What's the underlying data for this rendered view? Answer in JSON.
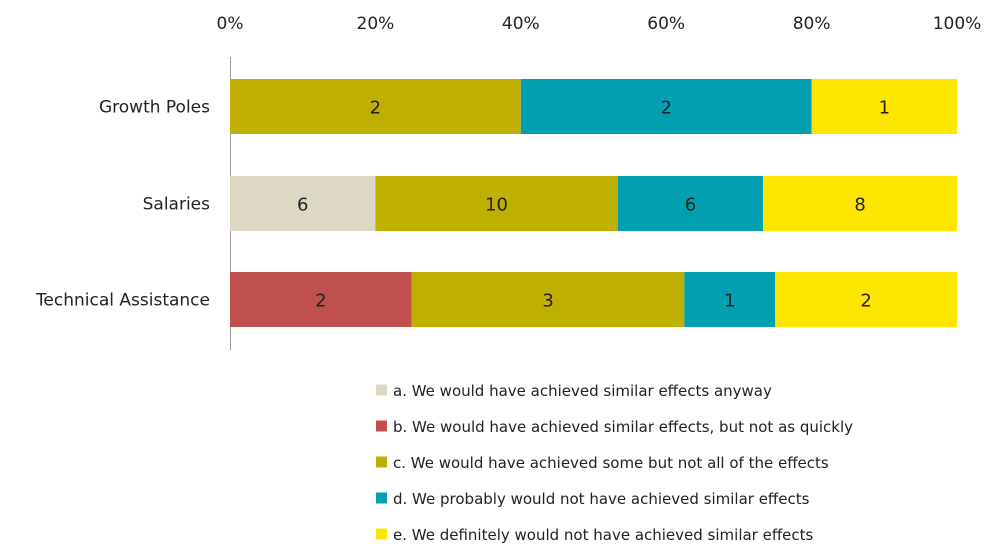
{
  "chart_data": {
    "type": "bar",
    "orientation": "horizontal",
    "stacked": "percent",
    "title": "",
    "xlabel": "",
    "ylabel": "",
    "xlim": [
      0,
      100
    ],
    "x_ticks": [
      "0%",
      "20%",
      "40%",
      "60%",
      "80%",
      "100%"
    ],
    "categories": [
      "Growth Poles",
      "Salaries",
      "Technical Assistance"
    ],
    "series": [
      {
        "name": "a. We would have achieved similar effects anyway",
        "values": [
          0,
          6,
          0
        ],
        "color": "#ddd8c4"
      },
      {
        "name": "b. We would have achieved similar effects, but not as quickly",
        "values": [
          0,
          0,
          2
        ],
        "color": "#c0504d"
      },
      {
        "name": "c. We would have achieved some but not all of the effects",
        "values": [
          2,
          10,
          3
        ],
        "color": "#bfaf00"
      },
      {
        "name": "d. We probably would not have achieved similar effects",
        "values": [
          2,
          6,
          1
        ],
        "color": "#00a0b0"
      },
      {
        "name": "e. We definitely would not have achieved similar effects",
        "values": [
          1,
          8,
          2
        ],
        "color": "#ffe600"
      }
    ],
    "grid": false,
    "axis_position": "top",
    "legend_position": "bottom"
  }
}
